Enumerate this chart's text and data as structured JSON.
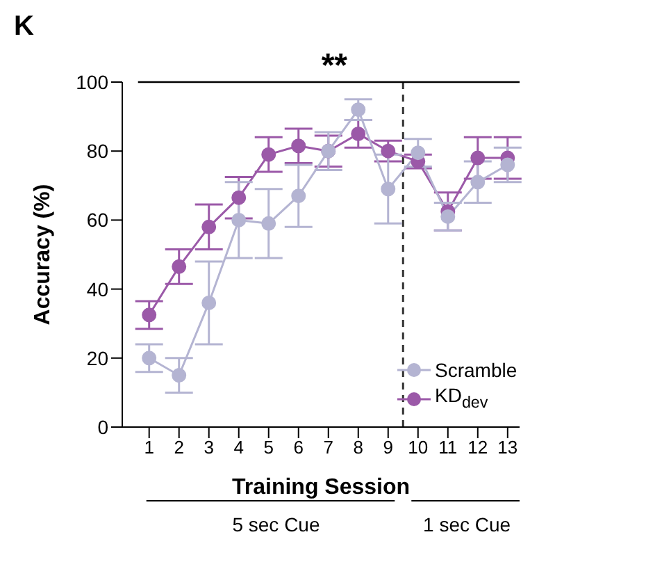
{
  "chart_data": {
    "type": "line",
    "title": "K",
    "xlabel": "Training Session",
    "ylabel": "Accuracy (%)",
    "x": [
      1,
      2,
      3,
      4,
      5,
      6,
      7,
      8,
      9,
      10,
      11,
      12,
      13
    ],
    "series": [
      {
        "name": "Scramble",
        "color": "#b4b4d2",
        "values": [
          20,
          15,
          36,
          60,
          59,
          67,
          80,
          92,
          69,
          79.5,
          61,
          71,
          76
        ],
        "errors": [
          4,
          5,
          12,
          11,
          10,
          9,
          5.5,
          3,
          10,
          4,
          4,
          6,
          5
        ]
      },
      {
        "name": "KD$_{dev}$",
        "color": "#9b59a8",
        "values": [
          32.5,
          46.5,
          58,
          66.5,
          79,
          81.5,
          80,
          85,
          80,
          77,
          62.5,
          78,
          78
        ],
        "errors": [
          4,
          5,
          6.5,
          6,
          5,
          5,
          4.5,
          4,
          3,
          2,
          5.5,
          6,
          6
        ]
      }
    ],
    "xlim": [
      0.1,
      13.4
    ],
    "xticks": [
      1,
      2,
      3,
      4,
      5,
      6,
      7,
      8,
      9,
      10,
      11,
      12,
      13
    ],
    "ylim": [
      0,
      100
    ],
    "yticks": [
      0,
      20,
      40,
      60,
      80,
      100
    ],
    "ref_lines": [
      {
        "axis": "x",
        "value": 9.5,
        "line_style": "dashed",
        "color": "#333333"
      }
    ],
    "annotations": [
      "**",
      "5 sec Cue",
      "1 sec Cue"
    ],
    "marker": "circle",
    "grid": false,
    "legend": "bottom right"
  }
}
